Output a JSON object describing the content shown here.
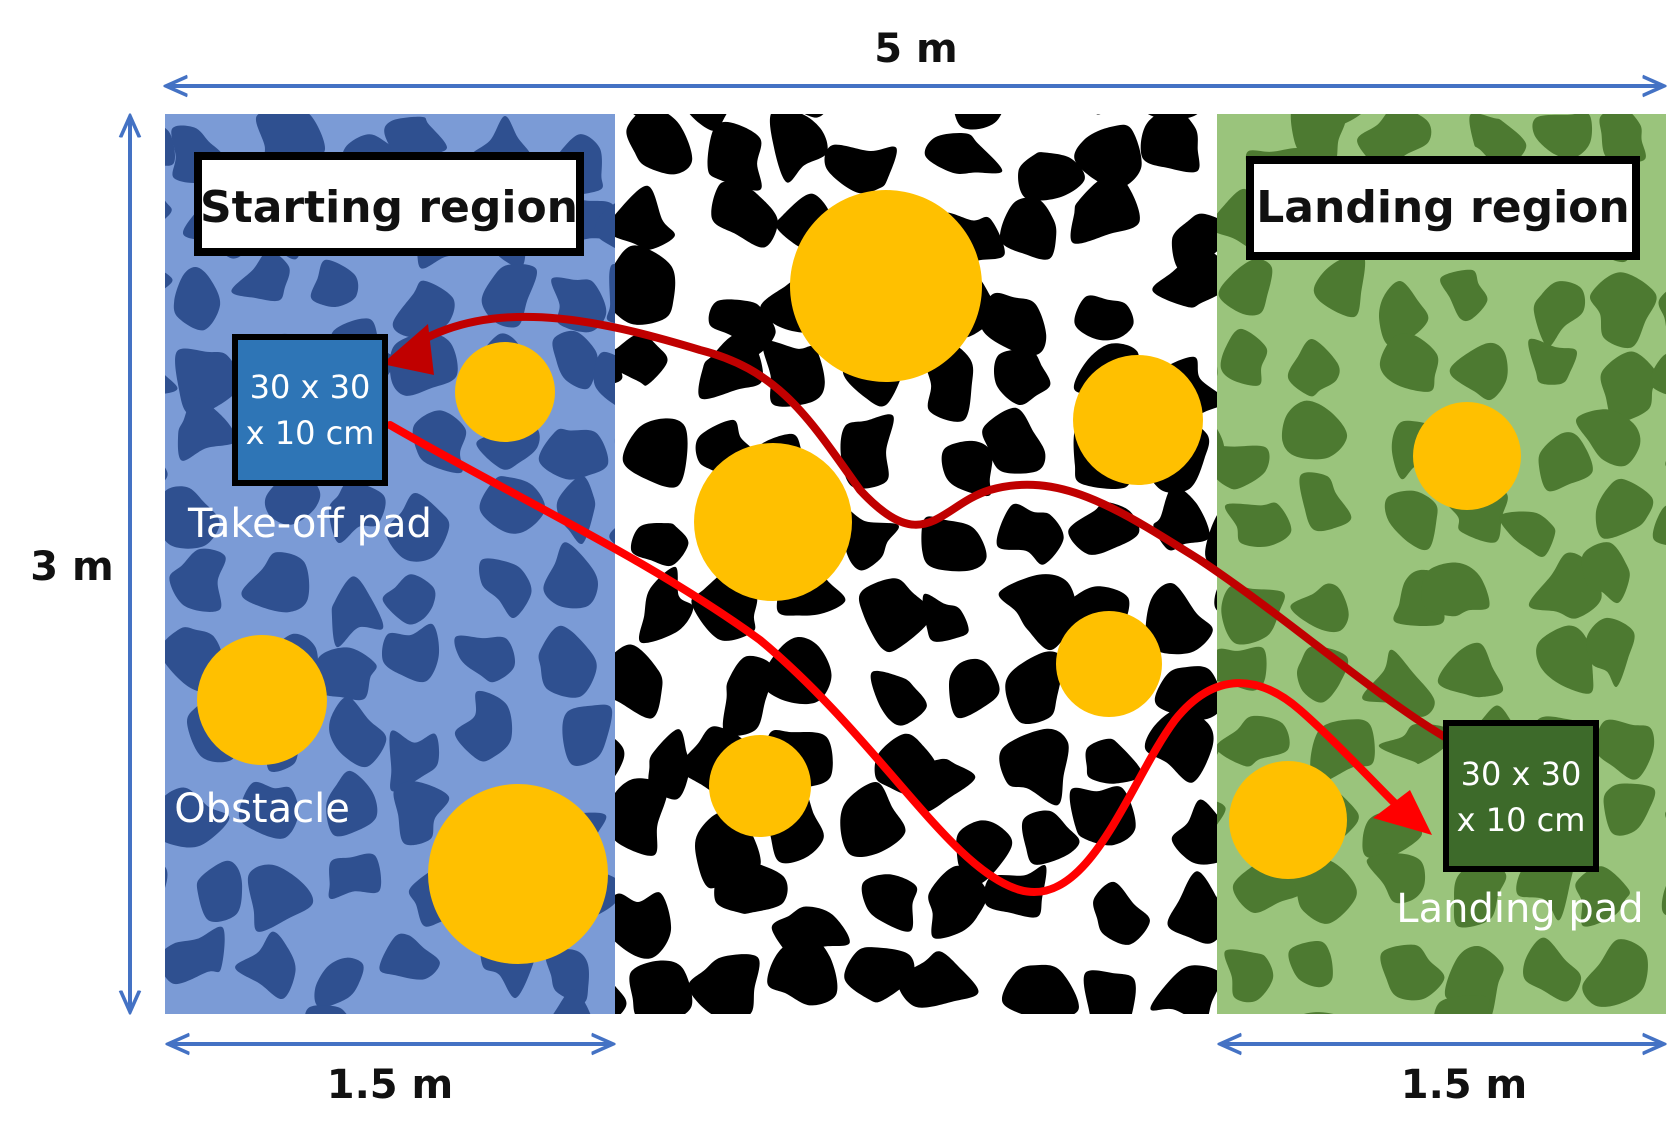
{
  "dimensions": {
    "width_label": "5 m",
    "height_label": "3 m",
    "start_width_label": "1.5 m",
    "land_width_label": "1.5 m"
  },
  "regions": {
    "start_title": "Starting region",
    "land_title": "Landing region"
  },
  "takeoff_pad": {
    "line1": "30 x 30",
    "line2": "x 10 cm",
    "caption": "Take-off pad"
  },
  "landing_pad": {
    "line1": "30 x 30",
    "line2": "x 10 cm",
    "caption": "Landing pad"
  },
  "obstacle_caption": "Obstacle",
  "colors": {
    "start_light": "#7b9bd6",
    "start_dark": "#2f5090",
    "middle_light": "#ffffff",
    "middle_dark": "#000000",
    "land_light": "#9ac47c",
    "land_dark": "#4d7a31",
    "obstacle": "#ffc000",
    "arrow_dark": "#c00000",
    "arrow_bright": "#ff0000",
    "dim_line": "#4472c4",
    "takeoff_pad_fill": "#2e75b6",
    "landing_pad_fill": "#3d6a2a"
  }
}
